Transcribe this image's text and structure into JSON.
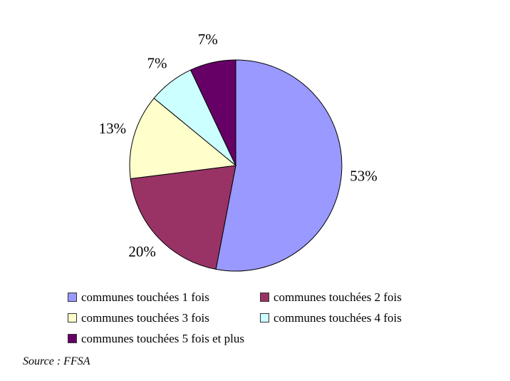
{
  "chart_data": {
    "type": "pie",
    "title": "",
    "categories": [
      "communes touchées 1 fois",
      "communes touchées 2 fois",
      "communes touchées 3 fois",
      "communes touchées 4 fois",
      "communes touchées 5 fois et plus"
    ],
    "values": [
      53,
      20,
      13,
      7,
      7
    ],
    "labels": [
      "53%",
      "20%",
      "13%",
      "7%",
      "7%"
    ],
    "colors": [
      "#9999FF",
      "#993366",
      "#FFFFCC",
      "#CCFFFF",
      "#660066"
    ],
    "start_angle_deg": 0,
    "direction": "clockwise",
    "legend_position": "bottom",
    "grid": false
  },
  "source": {
    "text": "Source : FFSA"
  }
}
